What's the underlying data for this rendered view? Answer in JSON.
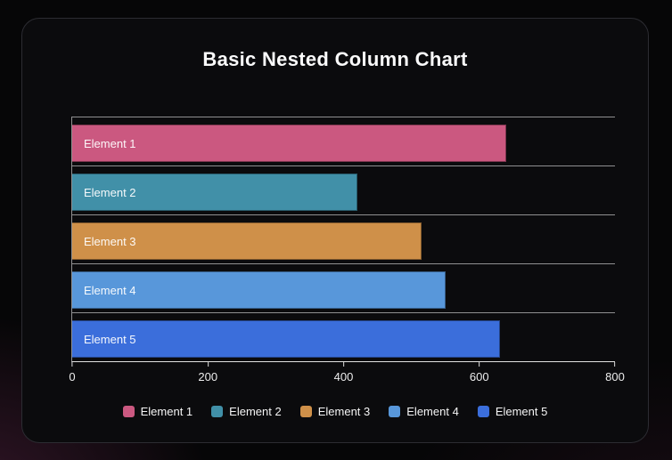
{
  "theme": {
    "background": "#060607",
    "card_background": "#0b0b0d",
    "card_border": "#2c2c32",
    "grid_color": "rgba(255,255,255,0.55)",
    "axis_color": "rgba(255,255,255,0.88)",
    "text_color": "#f5f5f5",
    "glow_color": "#7a2e5c"
  },
  "chart_data": {
    "type": "bar",
    "orientation": "horizontal",
    "title": "Basic Nested Column Chart",
    "xlabel": "",
    "ylabel": "",
    "categories": [
      "Element 1",
      "Element 2",
      "Element 3",
      "Element 4",
      "Element 5"
    ],
    "values": [
      640,
      420,
      515,
      550,
      630
    ],
    "colors": [
      "#cb5880",
      "#4190a8",
      "#cf9049",
      "#5897da",
      "#3b6edb"
    ],
    "xlim": [
      0,
      800
    ],
    "x_tick_values": [
      0,
      200,
      400,
      600,
      800
    ],
    "x_tick_labels": [
      "0",
      "200",
      "400",
      "600",
      "800"
    ],
    "grid": true,
    "bar_label_position": "inside-left",
    "legend_position": "bottom",
    "legend_labels": [
      "Element 1",
      "Element 2",
      "Element 3",
      "Element 4",
      "Element 5"
    ]
  }
}
